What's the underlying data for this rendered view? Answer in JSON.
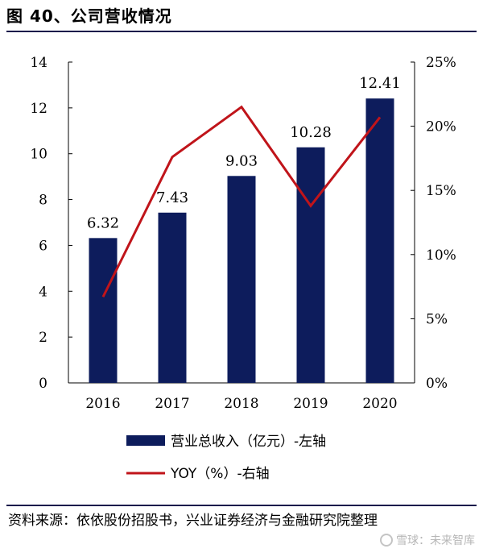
{
  "header": {
    "title": "图 40、公司营收情况"
  },
  "chart_data": {
    "type": "bar",
    "categories": [
      "2016",
      "2017",
      "2018",
      "2019",
      "2020"
    ],
    "series": [
      {
        "name": "营业总收入（亿元）-左轴",
        "type": "bar",
        "axis": "left",
        "values": [
          6.32,
          7.43,
          9.03,
          10.28,
          12.41
        ],
        "color": "#0d1c5c"
      },
      {
        "name": "YOY（%）-右轴",
        "type": "line",
        "axis": "right",
        "values": [
          6.7,
          17.6,
          21.5,
          13.8,
          20.7
        ],
        "color": "#c0141a"
      }
    ],
    "data_labels": [
      "6.32",
      "7.43",
      "9.03",
      "10.28",
      "12.41"
    ],
    "y_left": {
      "min": 0,
      "max": 14,
      "ticks": [
        "0",
        "2",
        "4",
        "6",
        "8",
        "10",
        "12",
        "14"
      ]
    },
    "y_right": {
      "min": 0,
      "max": 25,
      "ticks": [
        "0%",
        "5%",
        "10%",
        "15%",
        "20%",
        "25%"
      ]
    },
    "grid": false,
    "legend_position": "bottom"
  },
  "footer": {
    "source": "资料来源：依依股份招股书，兴业证券经济与金融研究院整理",
    "watermark": "雪球：未来智库"
  }
}
